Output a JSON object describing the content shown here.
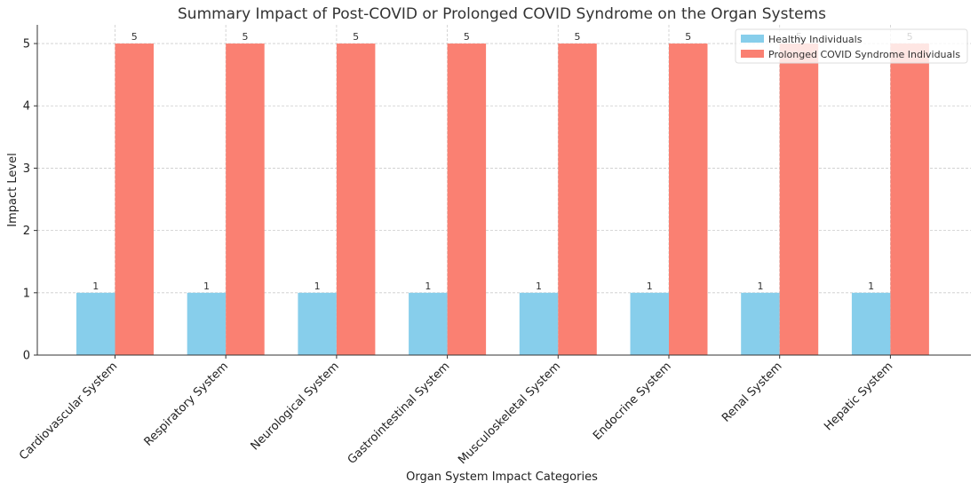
{
  "chart_data": {
    "type": "bar",
    "title": "Summary Impact of Post-COVID or Prolonged COVID Syndrome on the Organ Systems",
    "xlabel": "Organ System Impact Categories",
    "ylabel": "Impact Level",
    "categories": [
      "Cardiovascular System",
      "Respiratory System",
      "Neurological System",
      "Gastrointestinal System",
      "Musculoskeletal System",
      "Endocrine System",
      "Renal System",
      "Hepatic System"
    ],
    "series": [
      {
        "name": "Healthy Individuals",
        "color": "#87ceeb",
        "values": [
          1,
          1,
          1,
          1,
          1,
          1,
          1,
          1
        ]
      },
      {
        "name": "Prolonged COVID Syndrome Individuals",
        "color": "#fa8072",
        "values": [
          5,
          5,
          5,
          5,
          5,
          5,
          5,
          5
        ]
      }
    ],
    "ylim": [
      0,
      5.3
    ],
    "yticks": [
      0,
      1,
      2,
      3,
      4,
      5
    ],
    "grid": true,
    "legend": "top-right"
  }
}
